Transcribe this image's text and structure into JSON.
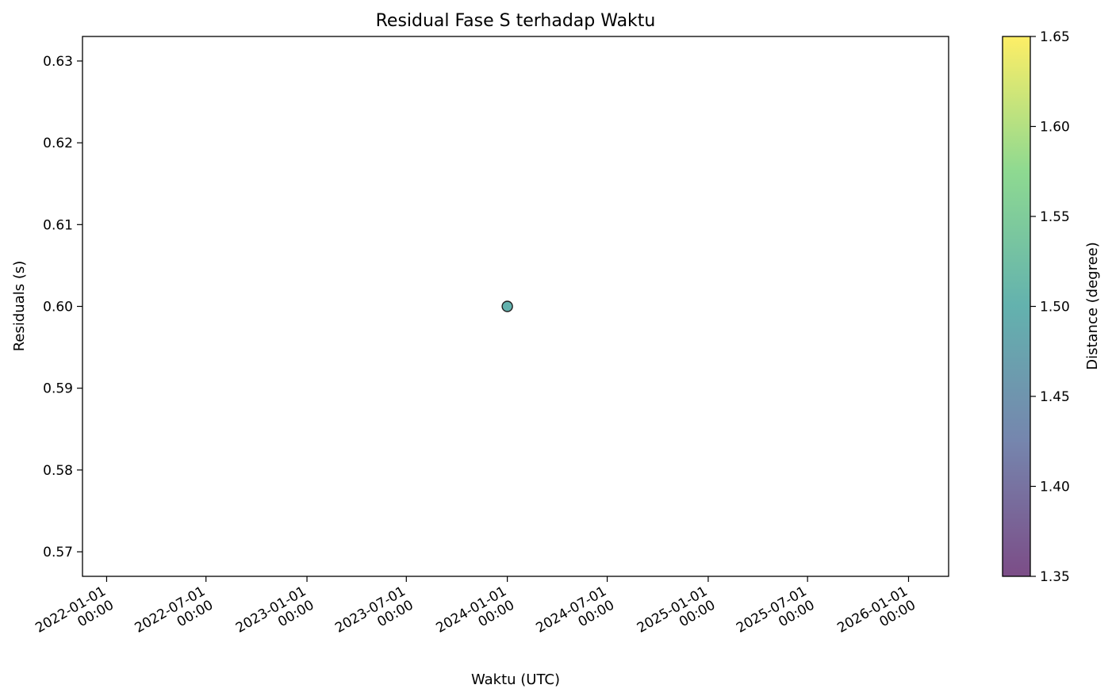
{
  "chart_data": {
    "type": "scatter",
    "title": "Residual Fase S terhadap Waktu",
    "xlabel": "Waktu (UTC)",
    "ylabel": "Residuals (s)",
    "x_ticks": [
      {
        "date": "2022-01-01",
        "line1": "2022-01-01",
        "line2": "00:00"
      },
      {
        "date": "2022-07-01",
        "line1": "2022-07-01",
        "line2": "00:00"
      },
      {
        "date": "2023-01-01",
        "line1": "2023-01-01",
        "line2": "00:00"
      },
      {
        "date": "2023-07-01",
        "line1": "2023-07-01",
        "line2": "00:00"
      },
      {
        "date": "2024-01-01",
        "line1": "2024-01-01",
        "line2": "00:00"
      },
      {
        "date": "2024-07-01",
        "line1": "2024-07-01",
        "line2": "00:00"
      },
      {
        "date": "2025-01-01",
        "line1": "2025-01-01",
        "line2": "00:00"
      },
      {
        "date": "2025-07-01",
        "line1": "2025-07-01",
        "line2": "00:00"
      },
      {
        "date": "2026-01-01",
        "line1": "2026-01-01",
        "line2": "00:00"
      }
    ],
    "xlim": [
      "2021-11-18",
      "2026-03-15"
    ],
    "y_ticks": [
      "0.57",
      "0.58",
      "0.59",
      "0.60",
      "0.61",
      "0.62",
      "0.63"
    ],
    "ylim": [
      0.567,
      0.633
    ],
    "grid": false,
    "points": [
      {
        "x": "2024-01-01",
        "y": 0.6,
        "distance": 1.5
      }
    ],
    "colorbar": {
      "label": "Distance (degree)",
      "colormap": "viridis",
      "range": [
        1.35,
        1.65
      ],
      "ticks": [
        "1.35",
        "1.40",
        "1.45",
        "1.50",
        "1.55",
        "1.60",
        "1.65"
      ]
    },
    "colors": {
      "marker_edge": "#1f1f1f",
      "colormap_stops": [
        "#440154",
        "#3b528b",
        "#21918c",
        "#5ec962",
        "#fde725"
      ]
    },
    "marker_alpha": 0.7
  }
}
